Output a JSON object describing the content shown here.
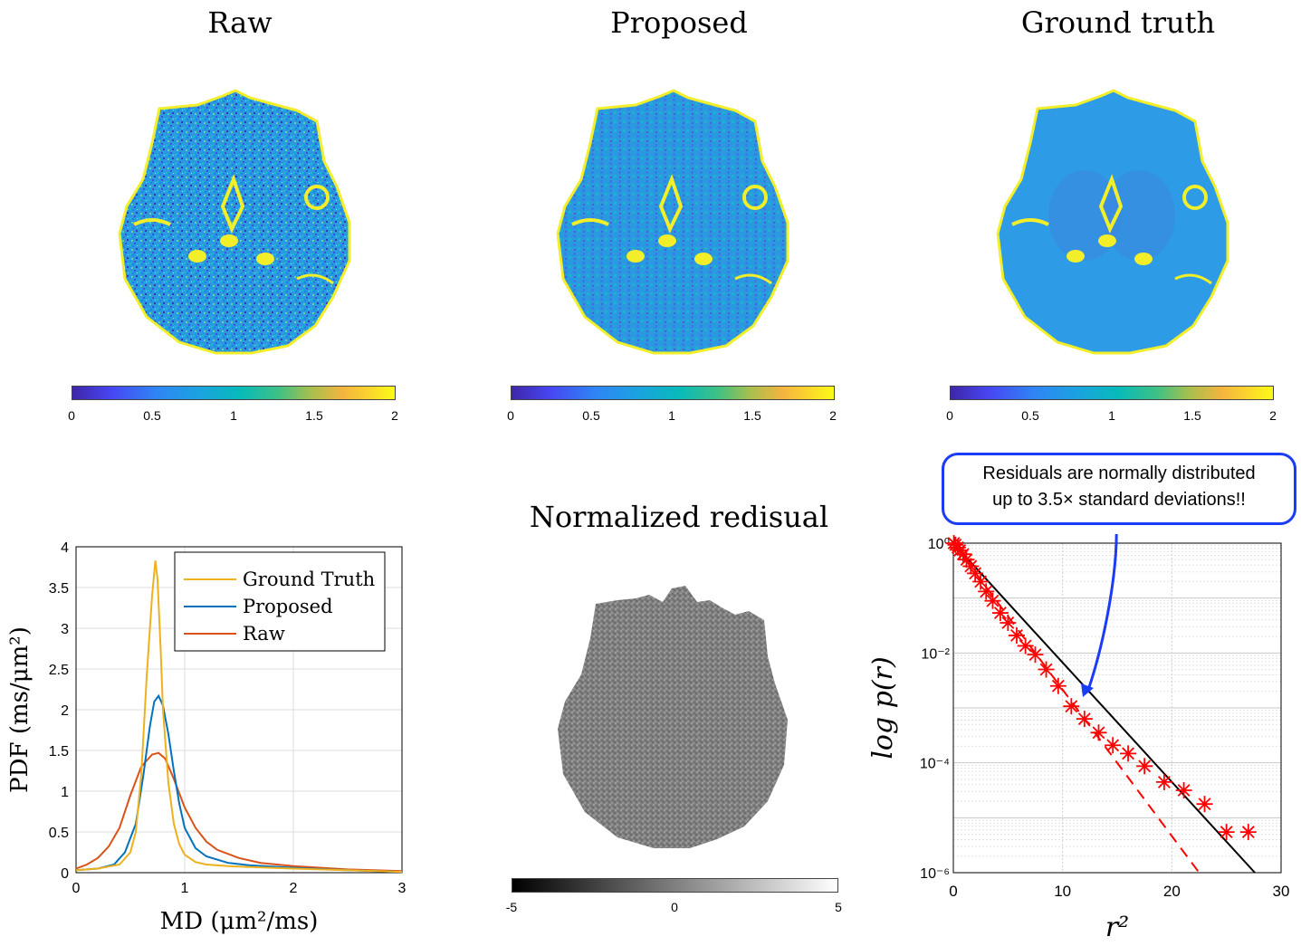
{
  "panels": {
    "raw": {
      "title": "Raw"
    },
    "proposed": {
      "title": "Proposed"
    },
    "ground_truth": {
      "title": "Ground truth"
    },
    "residual": {
      "title": "Normalized redisual"
    }
  },
  "colorbar_md": {
    "ticks": [
      "0",
      "0.5",
      "1",
      "1.5",
      "2"
    ]
  },
  "colorbar_residual": {
    "ticks": [
      "-5",
      "0",
      "5"
    ]
  },
  "callout": {
    "line1": "Residuals are normally distributed",
    "line2": "up to 3.5× standard deviations!!"
  },
  "colors": {
    "ground_truth": "#EDB120",
    "proposed": "#0072BD",
    "raw": "#D95319",
    "stars": "#ff0000",
    "arrow": "#1a3cf5"
  },
  "chart_data": [
    {
      "type": "line",
      "ylabel": "PDF (ms/μm²)",
      "xlabel": "MD (μm²/ms)",
      "xlim": [
        0,
        3
      ],
      "ylim": [
        0,
        4
      ],
      "xticks": [
        "0",
        "1",
        "2",
        "3"
      ],
      "yticks": [
        "0",
        "0.5",
        "1",
        "1.5",
        "2",
        "2.5",
        "3",
        "3.5",
        "4"
      ],
      "legend": [
        "Ground Truth",
        "Proposed",
        "Raw"
      ],
      "legend_position": "top-right",
      "series": [
        {
          "name": "Ground Truth",
          "x": [
            0,
            0.2,
            0.4,
            0.5,
            0.55,
            0.6,
            0.65,
            0.7,
            0.73,
            0.75,
            0.78,
            0.8,
            0.85,
            0.9,
            0.95,
            1.0,
            1.1,
            1.2,
            1.4,
            1.6,
            2.0,
            2.5,
            3.0
          ],
          "y": [
            0.03,
            0.05,
            0.1,
            0.25,
            0.5,
            1.2,
            2.4,
            3.4,
            3.83,
            3.6,
            2.7,
            2.0,
            1.1,
            0.6,
            0.35,
            0.22,
            0.13,
            0.1,
            0.08,
            0.07,
            0.05,
            0.03,
            0.01
          ]
        },
        {
          "name": "Proposed",
          "x": [
            0,
            0.2,
            0.35,
            0.45,
            0.55,
            0.62,
            0.68,
            0.72,
            0.76,
            0.8,
            0.85,
            0.9,
            0.95,
            1.0,
            1.1,
            1.2,
            1.4,
            1.6,
            2.0,
            2.5,
            3.0
          ],
          "y": [
            0.03,
            0.05,
            0.1,
            0.25,
            0.6,
            1.2,
            1.8,
            2.1,
            2.17,
            2.05,
            1.7,
            1.25,
            0.85,
            0.55,
            0.3,
            0.2,
            0.12,
            0.09,
            0.06,
            0.03,
            0.01
          ]
        },
        {
          "name": "Raw",
          "x": [
            0,
            0.1,
            0.2,
            0.3,
            0.4,
            0.5,
            0.6,
            0.7,
            0.76,
            0.82,
            0.9,
            1.0,
            1.1,
            1.2,
            1.3,
            1.5,
            1.7,
            2.0,
            2.5,
            3.0
          ],
          "y": [
            0.05,
            0.1,
            0.18,
            0.32,
            0.55,
            0.95,
            1.3,
            1.45,
            1.47,
            1.4,
            1.15,
            0.8,
            0.55,
            0.38,
            0.28,
            0.18,
            0.12,
            0.08,
            0.04,
            0.02
          ]
        }
      ]
    },
    {
      "type": "scatter",
      "xlabel": "r²",
      "ylabel": "log p(r)",
      "xlim": [
        0,
        30
      ],
      "ylim_log10": [
        -6,
        0
      ],
      "xticks": [
        "0",
        "10",
        "20",
        "30"
      ],
      "yticks": [
        "10⁰",
        "10⁻²",
        "10⁻⁴",
        "10⁻⁶"
      ],
      "grid": true,
      "reference_line": {
        "name": "Gaussian",
        "x": [
          0,
          27.6
        ],
        "log10_y": [
          0,
          -6
        ]
      },
      "fit_line": {
        "name": "dashed fit",
        "x": [
          0,
          22.5
        ],
        "log10_y": [
          0,
          -6
        ]
      },
      "stars": {
        "x": [
          0.05,
          0.2,
          0.4,
          0.6,
          0.9,
          1.2,
          1.6,
          2.0,
          2.5,
          3.0,
          3.6,
          4.3,
          5.0,
          5.8,
          6.6,
          7.5,
          8.5,
          9.6,
          10.8,
          12.0,
          13.3,
          14.6,
          16.0,
          17.5,
          19.3,
          21.1,
          23.0,
          25.0,
          27.0
        ],
        "log10_y": [
          0.0,
          -0.03,
          -0.08,
          -0.13,
          -0.2,
          -0.3,
          -0.42,
          -0.55,
          -0.7,
          -0.88,
          -1.05,
          -1.27,
          -1.45,
          -1.68,
          -1.87,
          -2.03,
          -2.3,
          -2.6,
          -2.97,
          -3.2,
          -3.45,
          -3.68,
          -3.83,
          -4.06,
          -4.35,
          -4.5,
          -4.75,
          -5.26,
          -5.26
        ]
      }
    }
  ]
}
